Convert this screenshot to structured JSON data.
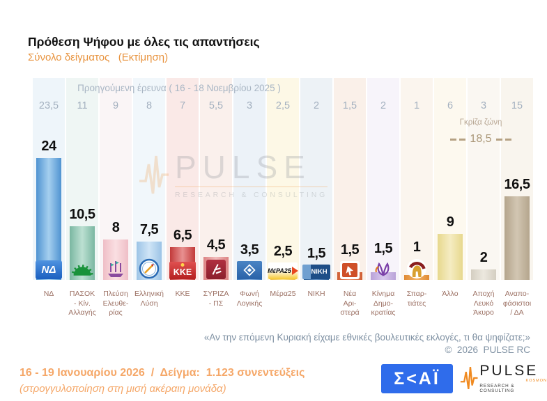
{
  "header": {
    "title": "Πρόθεση Ψήφου με όλες τις απαντήσεις",
    "subtitle": "Σύνολο δείγματος   (Εκτίμηση)"
  },
  "chart_data": {
    "type": "bar",
    "title": "Πρόθεση Ψήφου με όλες τις απαντήσεις",
    "unit": "%",
    "ylim": [
      0,
      26
    ],
    "previous_survey_label": "Προηγούμενη έρευνα ( 16 - 18 Νοεμβρίου 2025 )",
    "grey_zone": {
      "label": "Γκρίζα ζώνη",
      "value": 18.5,
      "display": "18,5"
    },
    "categories": [
      "ΝΔ",
      "ΠΑΣΟΚ - Κίν. Αλλαγής",
      "Πλεύση Ελευθερίας",
      "Ελληνική Λύση",
      "ΚΚΕ",
      "ΣΥΡΙΖΑ - ΠΣ",
      "Φωνή Λογικής",
      "Μέρα25",
      "ΝΙΚΗ",
      "Νέα Αριστερά",
      "Κίνημα Δημοκρατίας",
      "Σπαρτιάτες",
      "Άλλο",
      "Αποχή Λευκό Άκυρο",
      "Αναποφάσιστοι / ΔΑ"
    ],
    "series": [
      {
        "name": "Εκτίμηση (16 - 19 Ιανουαρίου 2026)",
        "values": [
          24,
          10.5,
          8,
          7.5,
          6.5,
          4.5,
          3.5,
          2.5,
          1.5,
          1.5,
          1.5,
          1,
          9,
          2,
          16.5
        ],
        "display": [
          "24",
          "10,5",
          "8",
          "7,5",
          "6,5",
          "4,5",
          "3,5",
          "2,5",
          "1,5",
          "1,5",
          "1,5",
          "1",
          "9",
          "2",
          "16,5"
        ]
      },
      {
        "name": "Προηγούμενη έρευνα ( 16 - 18 Νοεμβρίου 2025 )",
        "values": [
          23.5,
          11,
          9,
          8,
          7,
          5.5,
          3,
          2.5,
          2,
          1.5,
          2,
          1,
          6,
          3,
          15
        ],
        "display": [
          "23,5",
          "11",
          "9",
          "8",
          "7",
          "5,5",
          "3",
          "2,5",
          "2",
          "1,5",
          "2",
          "1",
          "6",
          "3",
          "15"
        ]
      }
    ],
    "parties": [
      {
        "id": "nd",
        "label_lines": "ΝΔ",
        "tint": "#eef5fa",
        "bar_edge": "#4f93d1",
        "bar_mid": "#a5cfef",
        "logo": "nd",
        "logo_text": "ΝΔ"
      },
      {
        "id": "pasok",
        "label_lines": "ΠΑΣΟΚ\n- Κίν.\nΑλλαγής",
        "tint": "#eff6f4",
        "bar_edge": "#7ab7a1",
        "bar_mid": "#bce0d2",
        "logo": "pasok",
        "logo_text": ""
      },
      {
        "id": "plefsi-eleftherias",
        "label_lines": "Πλεύση\nΕλευθε-\nρίας",
        "tint": "#faf5f6",
        "bar_edge": "#efbec6",
        "bar_mid": "#fadfe2",
        "logo": "plefsi",
        "logo_text": ""
      },
      {
        "id": "elliniki-lysi",
        "label_lines": "Ελληνική\nΛύση",
        "tint": "#f1f7fb",
        "bar_edge": "#9cc3e6",
        "bar_mid": "#cfe5f6",
        "logo": "compass",
        "logo_text": ""
      },
      {
        "id": "kke",
        "label_lines": "ΚΚΕ",
        "tint": "#fae9e7",
        "bar_edge": "#c23a3a",
        "bar_mid": "#e89090",
        "logo": "kke",
        "logo_text": "ΚΚΕ"
      },
      {
        "id": "syriza-ps",
        "label_lines": "ΣΥΡΙΖΑ\n- ΠΣ",
        "tint": "#faf0ec",
        "bar_edge": "#dc8383",
        "bar_mid": "#f2bcbc",
        "logo": "syriza",
        "logo_text": ""
      },
      {
        "id": "foni-logikis",
        "label_lines": "Φωνή\nΛογικής",
        "tint": "#ecf2f8",
        "bar_edge": "#3e78bc",
        "bar_mid": "#86afde",
        "logo": "foni",
        "logo_text": ""
      },
      {
        "id": "mera25",
        "label_lines": "Μέρα25",
        "tint": "#fdf8e6",
        "bar_edge": "#eec04a",
        "bar_mid": "#f8e08e",
        "logo": "mera25",
        "logo_text": "MέPA25"
      },
      {
        "id": "niki",
        "label_lines": "ΝΙΚΗ",
        "tint": "#edf2f6",
        "bar_edge": "#2c5e95",
        "bar_mid": "#5f8dc1",
        "logo": "niki",
        "logo_text": "ΝΙΚΗ"
      },
      {
        "id": "nea-aristera",
        "label_lines": "Νέα\nΑρι-\nστερά",
        "tint": "#faf0e9",
        "bar_edge": "#d05e33",
        "bar_mid": "#e89372",
        "logo": "arrow",
        "logo_text": ""
      },
      {
        "id": "kinima-dimokratias",
        "label_lines": "Κίνημα\nΔημο-\nκρατίας",
        "tint": "#f7f4fa",
        "bar_edge": "#b9a2d8",
        "bar_mid": "#d9c9ee",
        "logo": "tulip",
        "logo_text": ""
      },
      {
        "id": "spartiates",
        "label_lines": "Σπαρ-\nτιάτες",
        "tint": "#fbf5ee",
        "bar_edge": "#e08a33",
        "bar_mid": "#f2b468",
        "logo": "helmet",
        "logo_text": ""
      },
      {
        "id": "allo",
        "label_lines": "Άλλο",
        "tint": "#fdf9ef",
        "bar_edge": "#e7d88d",
        "bar_mid": "#f5ecc2",
        "logo": "",
        "logo_text": ""
      },
      {
        "id": "apochi-leuko-akyro",
        "label_lines": "Αποχή\nΛευκό\nΆκυρο",
        "tint": "#faf7f2",
        "bar_edge": "#d4cec1",
        "bar_mid": "#ece8df",
        "logo": "",
        "logo_text": ""
      },
      {
        "id": "anapofasistoi-da",
        "label_lines": "Αναπο-\nφάσιστοι\n/ ΔΑ",
        "tint": "#f9f5ee",
        "bar_edge": "#b4a58d",
        "bar_mid": "#d2c6b2",
        "logo": "",
        "logo_text": ""
      }
    ]
  },
  "watermark": {
    "title": "PULSE",
    "subtitle": "RESEARCH & CONSULTING"
  },
  "footer": {
    "question": "«Αν την επόμενη Κυριακή είχαμε εθνικές βουλευτικές εκλογές, τι θα ψηφίζατε;»",
    "copyright": "©  2026  PULSE RC",
    "fieldwork": "16 - 19 Ιανουαρίου 2026  /  Δείγμα:  1.123 συνεντεύξεις",
    "rounding_note": "(στρογγυλοποίηση στη μισή ακέραιη μονάδα)"
  },
  "logos": {
    "skai_text": "Σ<ΑΪ",
    "pulse": {
      "name": "PULSE",
      "kosmon": "KOSMON",
      "tagline": "RESEARCH & CONSULTING"
    }
  },
  "colors": {
    "accent_orange": "#e89440",
    "footer_orange": "#f5a768",
    "prev_text": "#a3b0bf",
    "label_brown": "#9c7164",
    "quote_gray": "#7e90a2",
    "skai_blue": "#2f6ceb",
    "pulse_orange": "#f08a20"
  }
}
